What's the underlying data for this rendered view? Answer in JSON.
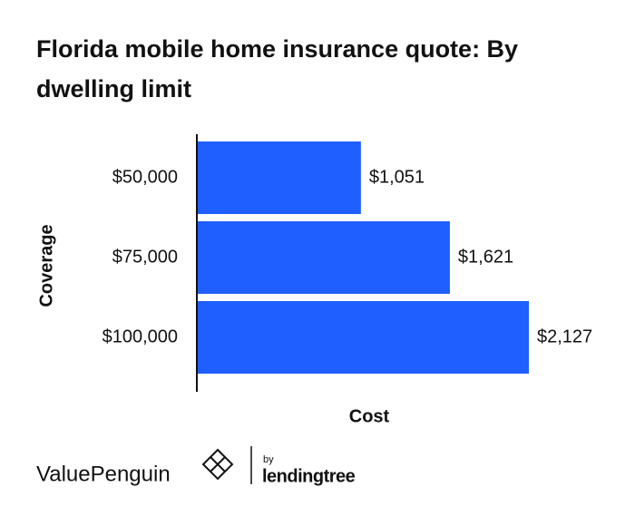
{
  "chart_data": {
    "type": "hbar",
    "title": "Florida mobile home insurance quote: By dwelling limit",
    "y_label": "Coverage",
    "x_label": "Cost",
    "categories": [
      "$50,000",
      "$75,000",
      "$100,000"
    ],
    "values": [
      1051,
      1621,
      2127
    ],
    "value_labels": [
      "$1,051",
      "$1,621",
      "$2,127"
    ],
    "color": "#1f5fff"
  },
  "logo": {
    "brand": "ValuePenguin",
    "by": "by",
    "partner": "lendingtree"
  }
}
